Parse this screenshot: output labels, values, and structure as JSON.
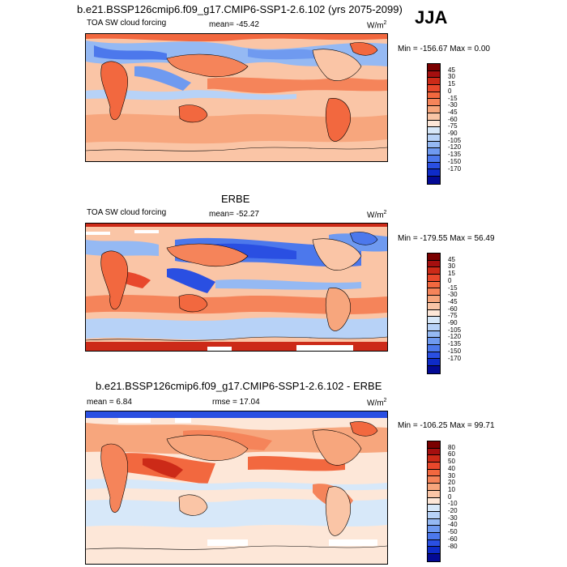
{
  "header": {
    "main_title": "b.e21.BSSP126cmip6.f09_g17.CMIP6-SSP1-2.6.102 (yrs 2075-2099)",
    "season": "JJA"
  },
  "panels": [
    {
      "title": "",
      "variable": "TOA SW cloud forcing",
      "stat": "mean= -45.42",
      "units": "W/m",
      "units_sup": "2",
      "minmax": "Min = -156.67 Max =   0.00",
      "colorbar_labels": [
        "45",
        "30",
        "15",
        "0",
        "-15",
        "-30",
        "-45",
        "-60",
        "-75",
        "-90",
        "-105",
        "-120",
        "-135",
        "-150",
        "-170"
      ],
      "colorbar_colors": [
        "#7a0000",
        "#a50f0f",
        "#cc2a18",
        "#e8482c",
        "#f2683f",
        "#f5845a",
        "#f7a67d",
        "#fac5a6",
        "#fde7d8",
        "#d7e8f9",
        "#b7d2f7",
        "#95b9f3",
        "#6f9af0",
        "#4c78ec",
        "#2a4fe2",
        "#0e2bc8",
        "#030a95"
      ]
    },
    {
      "title": "ERBE",
      "variable": "TOA SW cloud forcing",
      "stat": "mean= -52.27",
      "units": "W/m",
      "units_sup": "2",
      "minmax": "Min = -179.55 Max =  56.49",
      "colorbar_labels": [
        "45",
        "30",
        "15",
        "0",
        "-15",
        "-30",
        "-45",
        "-60",
        "-75",
        "-90",
        "-105",
        "-120",
        "-135",
        "-150",
        "-170"
      ],
      "colorbar_colors": [
        "#7a0000",
        "#a50f0f",
        "#cc2a18",
        "#e8482c",
        "#f2683f",
        "#f5845a",
        "#f7a67d",
        "#fac5a6",
        "#fde7d8",
        "#d7e8f9",
        "#b7d2f7",
        "#95b9f3",
        "#6f9af0",
        "#4c78ec",
        "#2a4fe2",
        "#0e2bc8",
        "#030a95"
      ]
    },
    {
      "title": "b.e21.BSSP126cmip6.f09_g17.CMIP6-SSP1-2.6.102 - ERBE",
      "variable": "mean =   6.84",
      "stat": "rmse =  17.04",
      "units": "W/m",
      "units_sup": "2",
      "minmax": "Min = -106.25 Max =  99.71",
      "colorbar_labels": [
        "80",
        "60",
        "50",
        "40",
        "30",
        "20",
        "10",
        "0",
        "-10",
        "-20",
        "-30",
        "-40",
        "-50",
        "-60",
        "-80"
      ],
      "colorbar_colors": [
        "#7a0000",
        "#a50f0f",
        "#cc2a18",
        "#e8482c",
        "#f2683f",
        "#f5845a",
        "#f7a67d",
        "#fac5a6",
        "#fde7d8",
        "#d7e8f9",
        "#b7d2f7",
        "#95b9f3",
        "#6f9af0",
        "#4c78ec",
        "#2a4fe2",
        "#0e2bc8",
        "#030a95"
      ]
    }
  ]
}
